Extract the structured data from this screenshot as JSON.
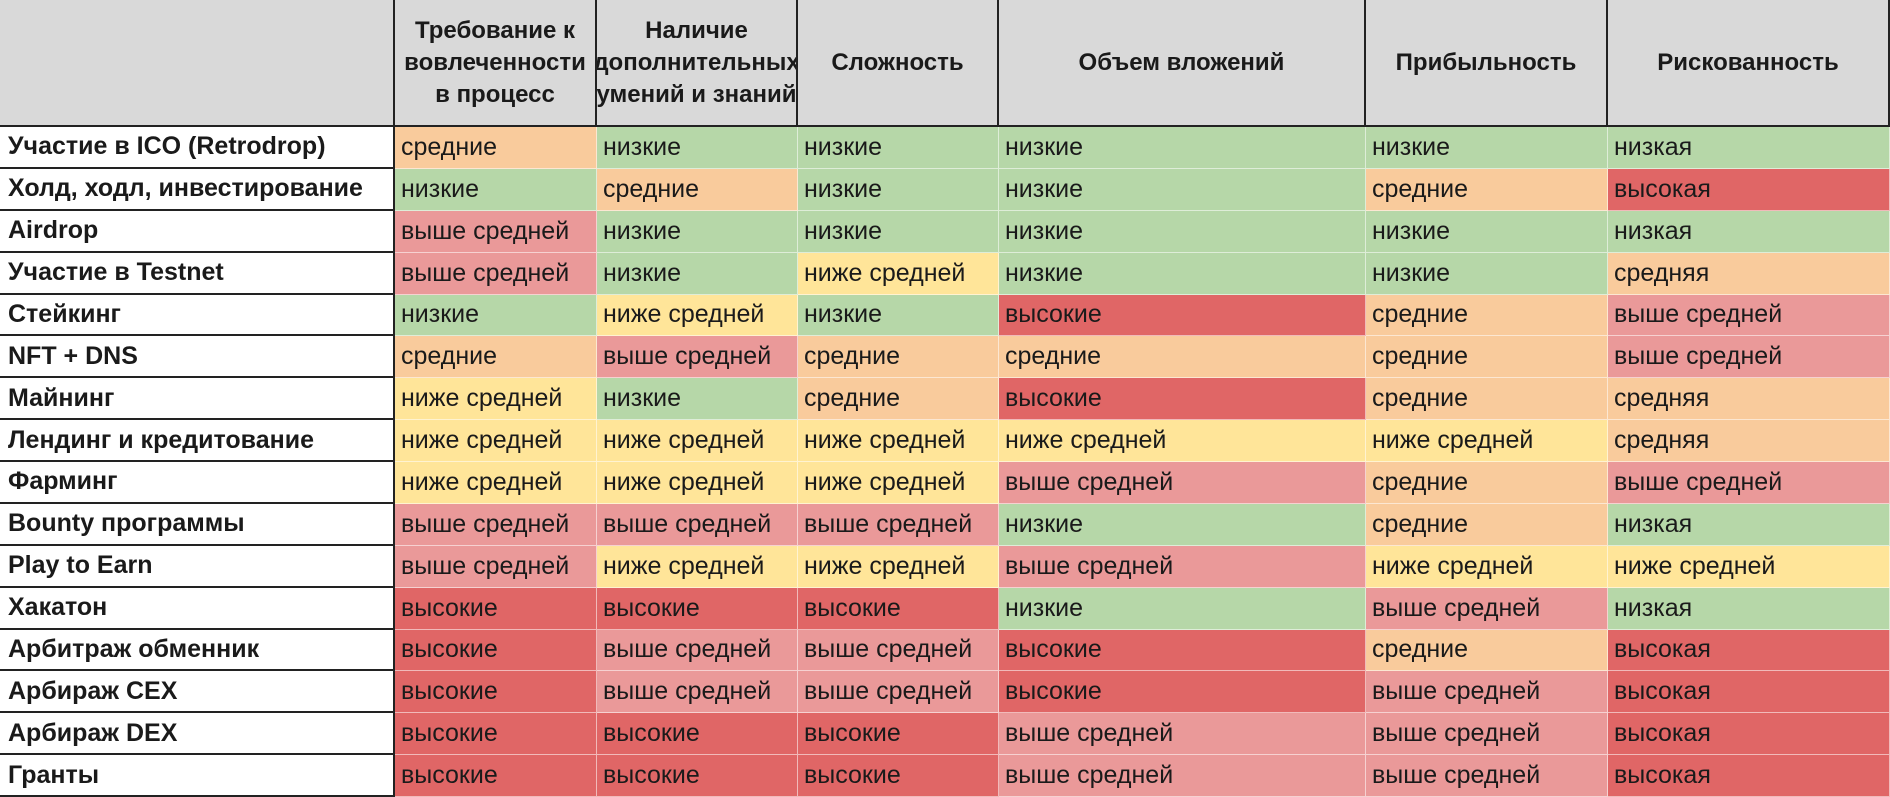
{
  "table": {
    "columns": [
      "Требование к вовлеченности в процесс",
      "Наличие дополнительных умений и знаний",
      "Сложность",
      "Объем вложений",
      "Прибыльность",
      "Рискованность"
    ],
    "rows": [
      {
        "label": "Участие в ICO (Retrodrop)",
        "values": [
          "средние",
          "низкие",
          "низкие",
          "низкие",
          "низкие",
          "низкая"
        ]
      },
      {
        "label": "Холд, ходл, инвестирование",
        "values": [
          "низкие",
          "средние",
          "низкие",
          "низкие",
          "средние",
          "высокая"
        ]
      },
      {
        "label": "Airdrop",
        "values": [
          "выше средней",
          "низкие",
          "низкие",
          "низкие",
          "низкие",
          "низкая"
        ]
      },
      {
        "label": "Участие в Testnet",
        "values": [
          "выше средней",
          "низкие",
          "ниже средней",
          "низкие",
          "низкие",
          "средняя"
        ]
      },
      {
        "label": "Стейкинг",
        "values": [
          "низкие",
          "ниже средней",
          "низкие",
          "высокие",
          "средние",
          "выше средней"
        ]
      },
      {
        "label": "NFT + DNS",
        "values": [
          "средние",
          "выше средней",
          "средние",
          "средние",
          "средние",
          "выше средней"
        ]
      },
      {
        "label": "Майнинг",
        "values": [
          "ниже средней",
          "низкие",
          "средние",
          "высокие",
          "средние",
          "средняя"
        ]
      },
      {
        "label": "Лендинг и кредитование",
        "values": [
          "ниже средней",
          "ниже средней",
          "ниже средней",
          "ниже средней",
          "ниже средней",
          "средняя"
        ]
      },
      {
        "label": "Фарминг",
        "values": [
          "ниже средней",
          "ниже средней",
          "ниже средней",
          "выше средней",
          "средние",
          "выше средней"
        ]
      },
      {
        "label": "Bounty программы",
        "values": [
          "выше средней",
          "выше средней",
          "выше средней",
          "низкие",
          "средние",
          "низкая"
        ]
      },
      {
        "label": "Play to Earn",
        "values": [
          "выше средней",
          "ниже средней",
          "ниже средней",
          "выше средней",
          "ниже средней",
          "ниже средней"
        ]
      },
      {
        "label": "Хакатон",
        "values": [
          "высокие",
          "высокие",
          "высокие",
          "низкие",
          "выше средней",
          "низкая"
        ]
      },
      {
        "label": "Арбитраж обменник",
        "values": [
          "высокие",
          "выше средней",
          "выше средней",
          "высокие",
          "средние",
          "высокая"
        ]
      },
      {
        "label": "Арбираж CEX",
        "values": [
          "высокие",
          "выше средней",
          "выше средней",
          "высокие",
          "выше средней",
          "высокая"
        ]
      },
      {
        "label": "Арбираж DEX",
        "values": [
          "высокие",
          "высокие",
          "высокие",
          "выше средней",
          "выше средней",
          "высокая"
        ]
      },
      {
        "label": "Гранты",
        "values": [
          "высокие",
          "высокие",
          "высокие",
          "выше средней",
          "выше средней",
          "высокая"
        ]
      }
    ]
  },
  "colors": {
    "low": "#b6d7a8",
    "below_average": "#ffe599",
    "average": "#f9cb9c",
    "above_average": "#ea9999",
    "high": "#e06666",
    "header": "#d9d9d9"
  }
}
